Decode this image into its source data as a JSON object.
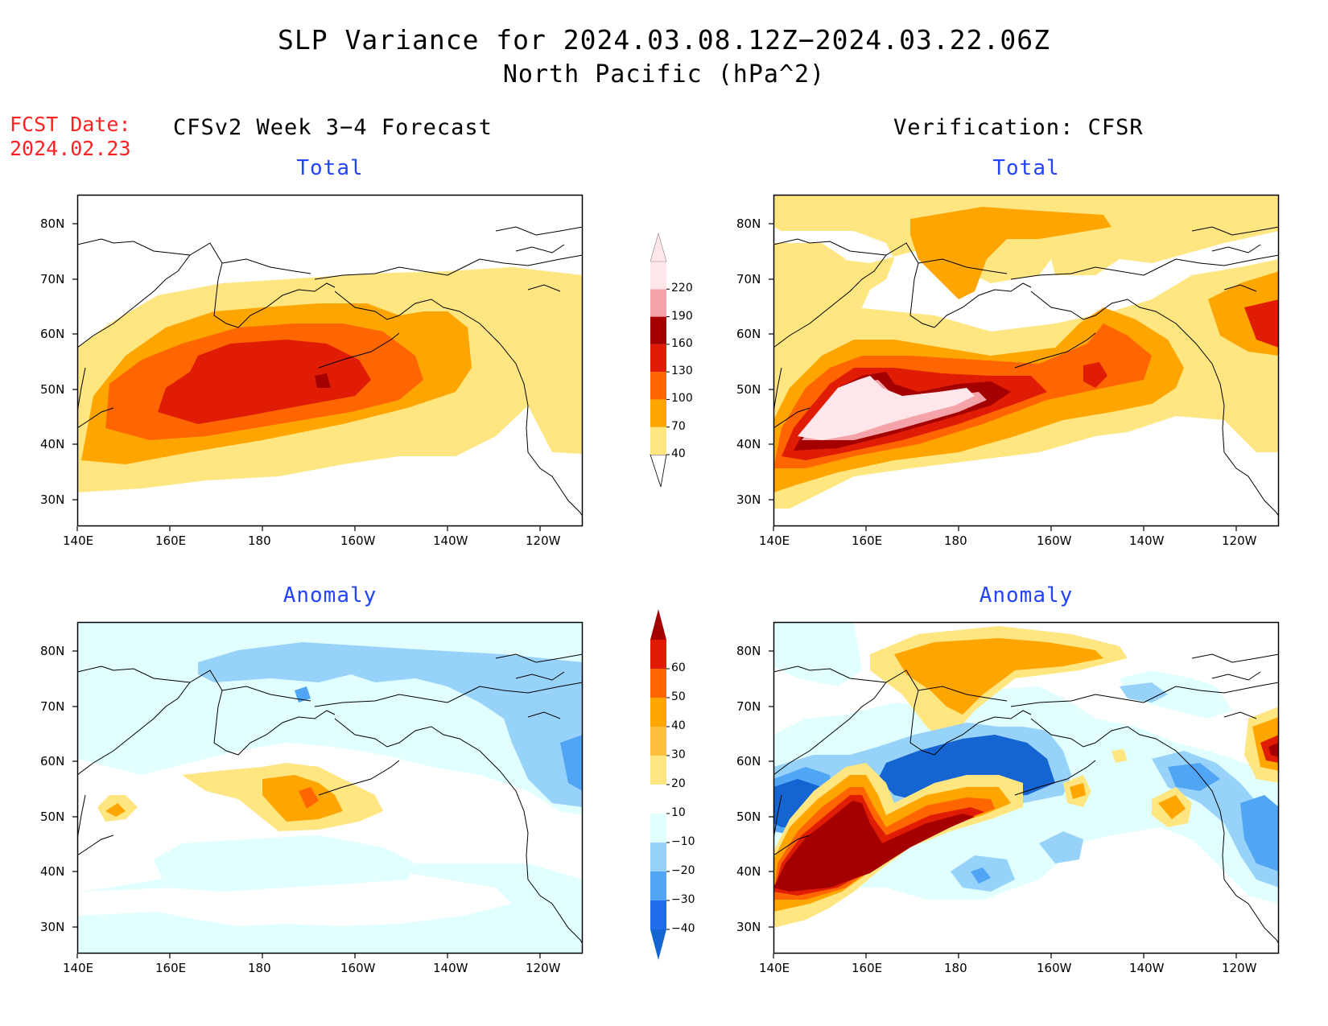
{
  "header": {
    "title_line1": "SLP Variance for 2024.03.08.12Z−2024.03.22.06Z",
    "title_line2": "North Pacific (hPa^2)",
    "fcst_label": "FCST Date:",
    "fcst_date": "2024.02.23",
    "left_column": "CFSv2 Week 3−4 Forecast",
    "right_column": "Verification: CFSR"
  },
  "panels": {
    "fcst_total": {
      "title": "Total"
    },
    "verif_total": {
      "title": "Total"
    },
    "fcst_anom": {
      "title": "Anomaly"
    },
    "verif_anom": {
      "title": "Anomaly"
    }
  },
  "axes": {
    "x_ticks": [
      "140E",
      "160E",
      "180",
      "160W",
      "140W",
      "120W"
    ],
    "y_ticks": [
      "80N",
      "70N",
      "60N",
      "50N",
      "40N",
      "30N"
    ]
  },
  "colorbars": {
    "total": {
      "levels": [
        "40",
        "70",
        "100",
        "130",
        "160",
        "190",
        "220"
      ],
      "colors": [
        "#ffe680",
        "#ffa500",
        "#ff6600",
        "#e11c05",
        "#a50000",
        "#f4a3a8",
        "#ffe6ea"
      ]
    },
    "anomaly": {
      "levels": [
        "−40",
        "−30",
        "−20",
        "−10",
        "10",
        "20",
        "30",
        "40",
        "50",
        "60"
      ],
      "colors": [
        "#1464d2",
        "#1e6eeb",
        "#50a5f5",
        "#96d2fa",
        "#e1ffff",
        "#ffffff",
        "#ffe680",
        "#ffc03c",
        "#ffa500",
        "#ff6600",
        "#e11c05",
        "#a50000"
      ]
    }
  },
  "palette": {
    "y40": "#ffe680",
    "o70": "#ffa500",
    "o100": "#ff6600",
    "r130": "#e11c05",
    "dr160": "#a50000",
    "p190": "#f4a3a8",
    "w220": "#ffe6ea",
    "lb10": "#e1ffff",
    "lb20": "#96d2fa",
    "b30": "#50a5f5",
    "b40": "#1e6eeb",
    "db": "#1464d2"
  }
}
